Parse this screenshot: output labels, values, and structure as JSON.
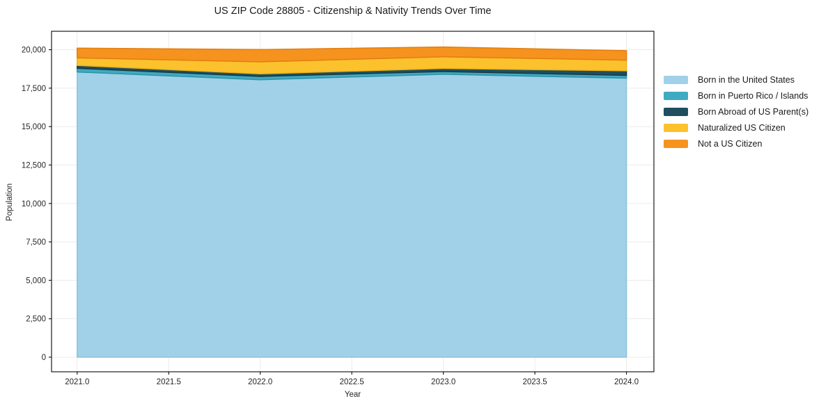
{
  "chart_data": {
    "type": "area",
    "stacked": true,
    "title": "US ZIP Code 28805 - Citizenship & Nativity Trends Over Time",
    "xlabel": "Year",
    "ylabel": "Population",
    "x": [
      2021,
      2022,
      2023,
      2024
    ],
    "series": [
      {
        "name": "Born in the United States",
        "color": "#A0D1E8",
        "edge": "#8CC3DD",
        "values": [
          18550,
          18050,
          18400,
          18150
        ]
      },
      {
        "name": "Born in Puerto Rico / Islands",
        "color": "#3FAAC1",
        "edge": "#2E93A8",
        "values": [
          240,
          210,
          180,
          180
        ]
      },
      {
        "name": "Born Abroad of US Parent(s)",
        "color": "#1F4E5F",
        "edge": "#163A47",
        "values": [
          190,
          170,
          200,
          300
        ]
      },
      {
        "name": "Naturalized US Citizen",
        "color": "#FCC22D",
        "edge": "#F0B117",
        "values": [
          490,
          780,
          760,
          690
        ]
      },
      {
        "name": "Not a US Citizen",
        "color": "#F6921E",
        "edge": "#E27E0F",
        "values": [
          630,
          800,
          640,
          620
        ]
      }
    ],
    "xlim": [
      2020.86,
      2024.15
    ],
    "ylim": [
      -950,
      21200
    ],
    "xticks": {
      "values": [
        2021.0,
        2021.5,
        2022.0,
        2022.5,
        2023.0,
        2023.5,
        2024.0
      ],
      "labels": [
        "2021.0",
        "2021.5",
        "2022.0",
        "2022.5",
        "2023.0",
        "2023.5",
        "2024.0"
      ]
    },
    "yticks": {
      "values": [
        0,
        2500,
        5000,
        7500,
        10000,
        12500,
        15000,
        17500,
        20000
      ],
      "labels": [
        "0",
        "2,500",
        "5,000",
        "7,500",
        "10,000",
        "12,500",
        "15,000",
        "17,500",
        "20,000"
      ]
    },
    "grid": true,
    "legend_position": "right",
    "colors": {
      "grid": "#EBEBEB",
      "spine": "#1a1a1a",
      "tick_label": "#262626",
      "background": "#FFFFFF"
    }
  }
}
